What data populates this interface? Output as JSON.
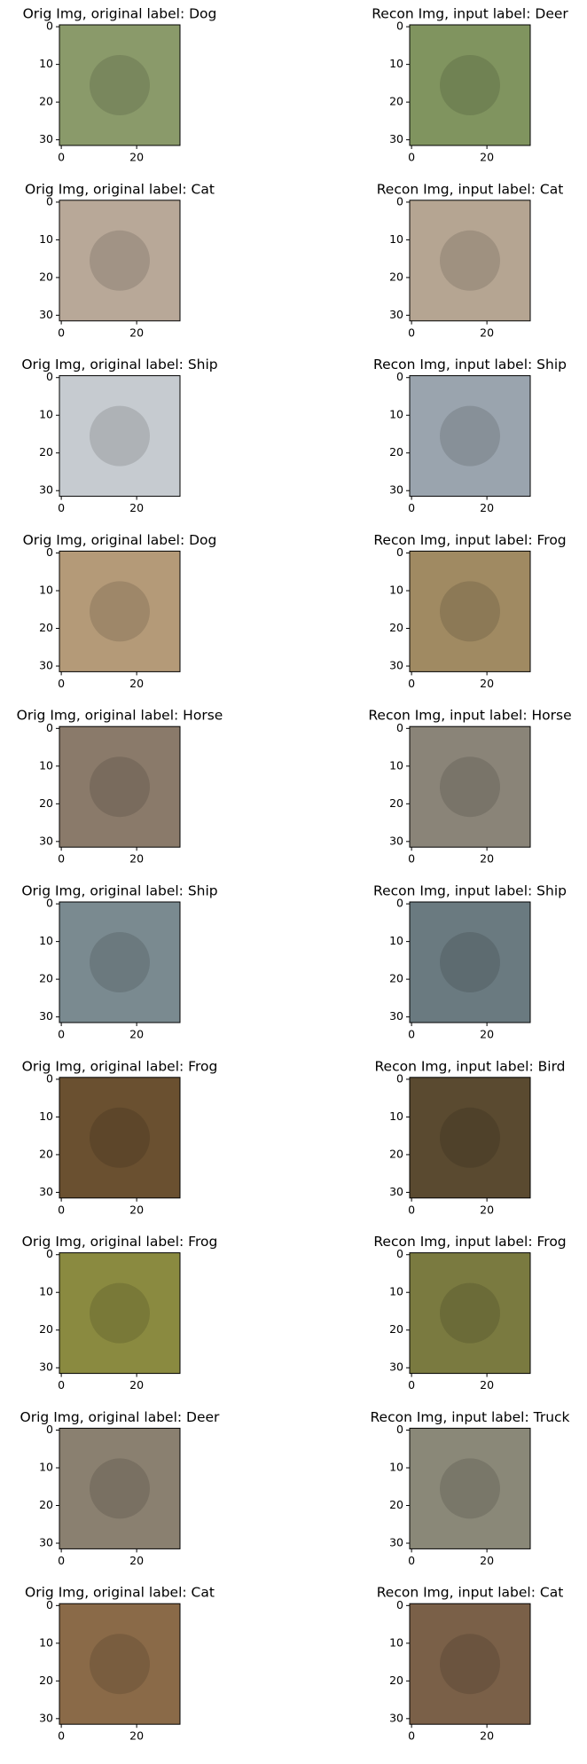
{
  "figure": {
    "xlim": [
      -0.5,
      31.5
    ],
    "ylim": [
      31.5,
      -0.5
    ],
    "xticks": [
      0,
      20
    ],
    "yticks": [
      0,
      10,
      20,
      30
    ],
    "rows": [
      {
        "orig": {
          "title": "Orig Img, original label: Dog",
          "color": "#8a9a6a"
        },
        "recon": {
          "title": "Recon Img, input label: Deer",
          "color": "#80945f"
        }
      },
      {
        "orig": {
          "title": "Orig Img, original label: Cat",
          "color": "#b8a898"
        },
        "recon": {
          "title": "Recon Img, input label: Cat",
          "color": "#b5a592"
        }
      },
      {
        "orig": {
          "title": "Orig Img, original label: Ship",
          "color": "#c6cbd0"
        },
        "recon": {
          "title": "Recon Img, input label: Ship",
          "color": "#9aa4ae"
        }
      },
      {
        "orig": {
          "title": "Orig Img, original label: Dog",
          "color": "#b49a78"
        },
        "recon": {
          "title": "Recon Img, input label: Frog",
          "color": "#a08a62"
        }
      },
      {
        "orig": {
          "title": "Orig Img, original label: Horse",
          "color": "#8a7a6a"
        },
        "recon": {
          "title": "Recon Img, input label: Horse",
          "color": "#8a8478"
        }
      },
      {
        "orig": {
          "title": "Orig Img, original label: Ship",
          "color": "#7a8a90"
        },
        "recon": {
          "title": "Recon Img, input label: Ship",
          "color": "#6a7a80"
        }
      },
      {
        "orig": {
          "title": "Orig Img, original label: Frog",
          "color": "#6a5030"
        },
        "recon": {
          "title": "Recon Img, input label: Bird",
          "color": "#5a4a30"
        }
      },
      {
        "orig": {
          "title": "Orig Img, original label: Frog",
          "color": "#8a8a40"
        },
        "recon": {
          "title": "Recon Img, input label: Frog",
          "color": "#7a7a40"
        }
      },
      {
        "orig": {
          "title": "Orig Img, original label: Deer",
          "color": "#8a8070"
        },
        "recon": {
          "title": "Recon Img, input label: Truck",
          "color": "#8a8878"
        }
      },
      {
        "orig": {
          "title": "Orig Img, original label: Cat",
          "color": "#8a6a48"
        },
        "recon": {
          "title": "Recon Img, input label: Cat",
          "color": "#7a6048"
        }
      }
    ]
  }
}
